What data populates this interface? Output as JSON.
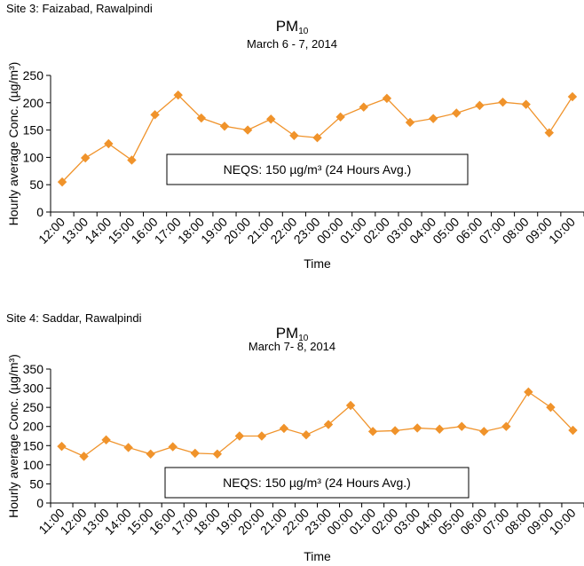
{
  "chart_data": [
    {
      "type": "line",
      "site_label": "Site 3: Faizabad, Rawalpindi",
      "title_main": "PM",
      "title_sub": "10",
      "subtitle": "March 6 - 7, 2014",
      "ylabel": "Hourly average Conc. (µg/m³)",
      "xlabel": "Time",
      "ylim": [
        0,
        250
      ],
      "yticks": [
        "0",
        "50",
        "100",
        "150",
        "200",
        "250"
      ],
      "annotation": "NEQS: 150 µg/m³  (24 Hours Avg.)",
      "x": [
        "12:00",
        "13:00",
        "14:00",
        "15:00",
        "16:00",
        "17:00",
        "18:00",
        "19:00",
        "20:00",
        "21:00",
        "22:00",
        "23:00",
        "00:00",
        "01:00",
        "02:00",
        "03:00",
        "04:00",
        "05:00",
        "06:00",
        "07:00",
        "08:00",
        "09:00",
        "10:00"
      ],
      "values": [
        55,
        99,
        125,
        95,
        178,
        214,
        172,
        157,
        150,
        170,
        140,
        136,
        174,
        192,
        208,
        164,
        171,
        181,
        195,
        201,
        197,
        145,
        211
      ],
      "color": "#f0932b",
      "legend": false,
      "grid": false
    },
    {
      "type": "line",
      "site_label": "Site 4: Saddar, Rawalpindi",
      "title_main": "PM",
      "title_sub": "10",
      "subtitle": "March 7- 8, 2014",
      "ylabel": "Hourly average Conc. (µg/m³)",
      "xlabel": "Time",
      "ylim": [
        0,
        350
      ],
      "yticks": [
        "0",
        "50",
        "100",
        "150",
        "200",
        "250",
        "300",
        "350"
      ],
      "annotation": "NEQS: 150 µg/m³  (24 Hours Avg.)",
      "x": [
        "11:00",
        "12:00",
        "13:00",
        "14:00",
        "15:00",
        "16:00",
        "17:00",
        "18:00",
        "19:00",
        "20:00",
        "21:00",
        "22:00",
        "23:00",
        "00:00",
        "01:00",
        "02:00",
        "03:00",
        "04:00",
        "05:00",
        "06:00",
        "07:00",
        "08:00",
        "09:00",
        "10:00"
      ],
      "values": [
        148,
        122,
        165,
        145,
        128,
        147,
        130,
        128,
        175,
        175,
        195,
        178,
        205,
        255,
        187,
        189,
        196,
        193,
        200,
        187,
        200,
        290,
        250,
        190
      ],
      "color": "#f0932b",
      "legend": false,
      "grid": false
    }
  ]
}
